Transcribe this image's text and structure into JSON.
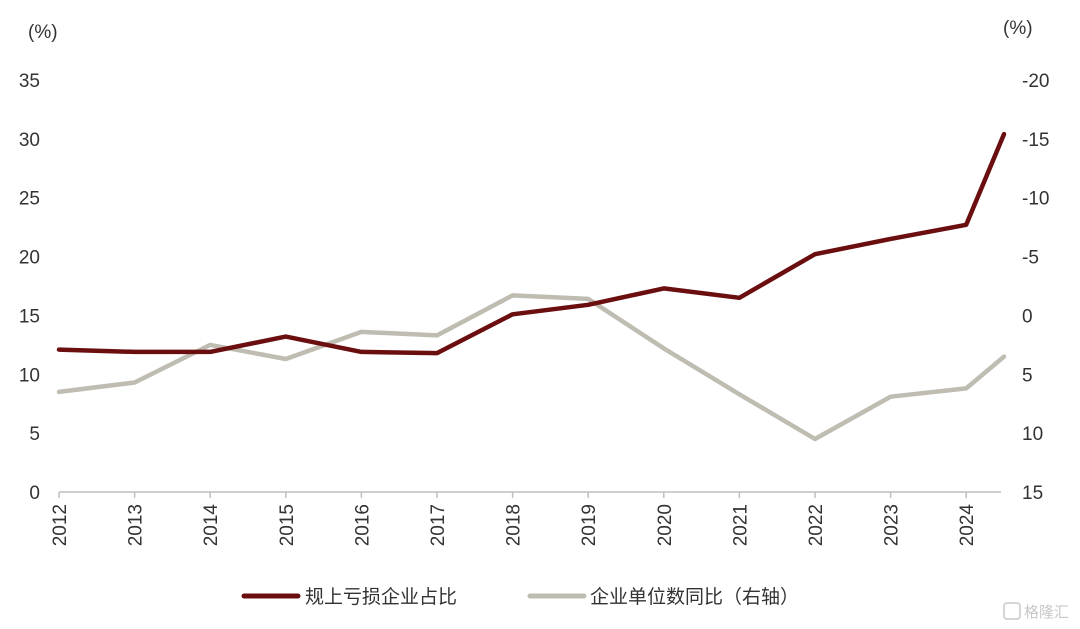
{
  "chart_data": {
    "type": "line",
    "categories": [
      "2012",
      "2013",
      "2014",
      "2015",
      "2016",
      "2017",
      "2018",
      "2019",
      "2020",
      "2021",
      "2022",
      "2023",
      "2024"
    ],
    "left_unit": "(%)",
    "right_unit": "(%)",
    "y_left": {
      "min": 0,
      "max": 35,
      "ticks": [
        0,
        5,
        10,
        15,
        20,
        25,
        30,
        35
      ]
    },
    "y_right": {
      "min": -20,
      "max": 15,
      "reversed": true,
      "ticks": [
        -20,
        -15,
        -10,
        -5,
        0,
        5,
        10,
        15
      ]
    },
    "series": [
      {
        "name": "规上亏损企业占比",
        "axis": "left",
        "color": "#6b0e10",
        "x": [
          0,
          1,
          2,
          3,
          4,
          5,
          6,
          7,
          8,
          9,
          10,
          11,
          12,
          12.5
        ],
        "values": [
          12.1,
          11.9,
          11.9,
          13.2,
          11.9,
          11.8,
          15.1,
          15.9,
          17.3,
          16.5,
          20.2,
          21.5,
          22.7,
          30.4
        ]
      },
      {
        "name": "企业单位数同比（右轴）",
        "axis": "right",
        "color": "#bfbcb2",
        "x": [
          0,
          1,
          2,
          3,
          4,
          5,
          6,
          7,
          8,
          9,
          10,
          11,
          12,
          12.5
        ],
        "values": [
          6.5,
          5.7,
          2.5,
          3.7,
          1.4,
          1.7,
          -1.7,
          -1.4,
          2.8,
          6.7,
          10.5,
          6.9,
          6.2,
          3.5
        ]
      }
    ],
    "legend_position": "bottom",
    "grid": false
  },
  "watermark": "格隆汇"
}
